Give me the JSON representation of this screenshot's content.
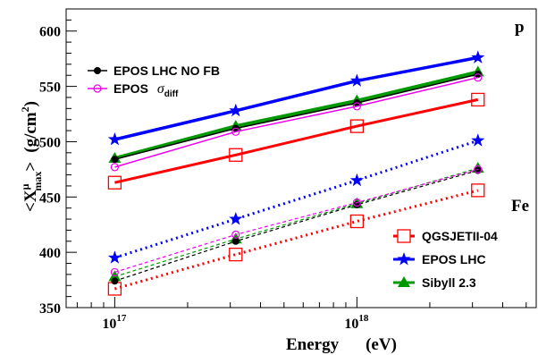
{
  "chart_data": {
    "type": "line",
    "x_scale": "log",
    "x": [
      1e+17,
      3.16e+17,
      1e+18,
      3.16e+18
    ],
    "xlim": [
      6.3e+16,
      5.5e+18
    ],
    "ylim": [
      350,
      620
    ],
    "yticks": [
      350,
      400,
      450,
      500,
      550,
      600
    ],
    "xticks": [
      {
        "value": 1e+17,
        "base": "10",
        "exp": "17"
      },
      {
        "value": 1e+18,
        "base": "10",
        "exp": "18"
      }
    ],
    "xlabel": {
      "main": "Energy",
      "unit": "(eV)"
    },
    "ylabel": {
      "lt": "<",
      "x": "X",
      "sup": "μ",
      "sub": "max",
      "gt": ">",
      "unit": "(g/cm",
      "unit_sup": "2",
      "unit_close": ")"
    },
    "annotations": {
      "proton": "p",
      "iron": "Fe"
    },
    "legend_top": [
      {
        "series": "EPOS LHC NO FB",
        "label": "EPOS LHC NO FB"
      },
      {
        "series": "EPOS σdiff",
        "label_main": "EPOS",
        "label_sym": "σ",
        "label_sub": "diff"
      }
    ],
    "legend_bottom": [
      {
        "series": "QGSJETII-04",
        "label": "QGSJETII-04"
      },
      {
        "series": "EPOS LHC",
        "label": "EPOS LHC"
      },
      {
        "series": "Sibyll 2.3",
        "label": "Sibyll 2.3"
      }
    ],
    "series": [
      {
        "name": "QGSJETII-04",
        "color": "#ff0000",
        "marker": "open-square",
        "proton": [
          463,
          488,
          514,
          538
        ],
        "iron": [
          367,
          398,
          428,
          456
        ]
      },
      {
        "name": "EPOS LHC",
        "color": "#0000ff",
        "marker": "star",
        "proton": [
          502,
          528,
          555,
          576
        ],
        "iron": [
          395,
          430,
          465,
          501
        ]
      },
      {
        "name": "Sibyll 2.3",
        "color": "#009900",
        "marker": "triangle",
        "proton": [
          485,
          514,
          537,
          563
        ],
        "iron": [
          378,
          412,
          444,
          476
        ]
      },
      {
        "name": "EPOS LHC NO FB",
        "color": "#000000",
        "marker": "dot",
        "proton": [
          484,
          512,
          535,
          561
        ],
        "iron": [
          374,
          410,
          443,
          474
        ]
      },
      {
        "name": "EPOS σdiff",
        "color": "#ee00ee",
        "marker": "open-circle",
        "proton": [
          477,
          509,
          532,
          558
        ],
        "iron": [
          382,
          416,
          445,
          475
        ]
      }
    ]
  }
}
